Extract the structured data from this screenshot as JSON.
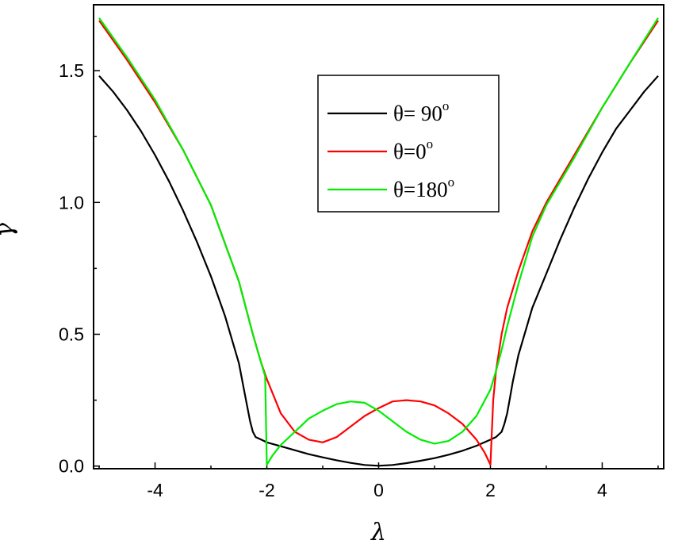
{
  "chart_data": {
    "type": "line",
    "xlabel": "λ",
    "ylabel": "γ",
    "xlim": [
      -5.1,
      5.1
    ],
    "ylim": [
      -0.01,
      1.75
    ],
    "x_ticks": [
      -4,
      -2,
      0,
      2,
      4
    ],
    "y_ticks": [
      0.0,
      0.5,
      1.0,
      1.5
    ],
    "x_tick_labels": [
      "-4",
      "-2",
      "0",
      "2",
      "4"
    ],
    "y_tick_labels": [
      "0.0",
      "0.5",
      "1.0",
      "1.5"
    ],
    "legend_position": "top-right",
    "series": [
      {
        "name": "θ= 90",
        "name_sup": "o",
        "color": "#000000",
        "points": [
          [
            -5,
            1.48
          ],
          [
            -4.75,
            1.42
          ],
          [
            -4.5,
            1.35
          ],
          [
            -4.25,
            1.27
          ],
          [
            -4,
            1.18
          ],
          [
            -3.75,
            1.08
          ],
          [
            -3.5,
            0.97
          ],
          [
            -3.25,
            0.85
          ],
          [
            -3,
            0.72
          ],
          [
            -2.75,
            0.57
          ],
          [
            -2.5,
            0.39
          ],
          [
            -2.4,
            0.28
          ],
          [
            -2.3,
            0.17
          ],
          [
            -2.25,
            0.13
          ],
          [
            -2.2,
            0.11
          ],
          [
            -2.1,
            0.1
          ],
          [
            -2,
            0.09
          ],
          [
            -1.75,
            0.075
          ],
          [
            -1.5,
            0.06
          ],
          [
            -1.25,
            0.045
          ],
          [
            -1,
            0.033
          ],
          [
            -0.75,
            0.022
          ],
          [
            -0.5,
            0.012
          ],
          [
            -0.25,
            0.004
          ],
          [
            0,
            0.001
          ],
          [
            0.25,
            0.004
          ],
          [
            0.5,
            0.011
          ],
          [
            0.75,
            0.02
          ],
          [
            1,
            0.03
          ],
          [
            1.25,
            0.043
          ],
          [
            1.5,
            0.058
          ],
          [
            1.75,
            0.077
          ],
          [
            2,
            0.1
          ],
          [
            2.1,
            0.11
          ],
          [
            2.2,
            0.13
          ],
          [
            2.25,
            0.16
          ],
          [
            2.3,
            0.2
          ],
          [
            2.35,
            0.26
          ],
          [
            2.4,
            0.32
          ],
          [
            2.5,
            0.42
          ],
          [
            2.75,
            0.6
          ],
          [
            3,
            0.73
          ],
          [
            3.25,
            0.86
          ],
          [
            3.5,
            0.98
          ],
          [
            3.75,
            1.09
          ],
          [
            4,
            1.19
          ],
          [
            4.25,
            1.28
          ],
          [
            4.5,
            1.35
          ],
          [
            4.75,
            1.42
          ],
          [
            5,
            1.48
          ]
        ]
      },
      {
        "name": "θ=0",
        "name_sup": "o",
        "color": "#ff0000",
        "points": [
          [
            -5,
            1.69
          ],
          [
            -4.5,
            1.54
          ],
          [
            -4,
            1.38
          ],
          [
            -3.5,
            1.2
          ],
          [
            -3,
            0.99
          ],
          [
            -2.5,
            0.7
          ],
          [
            -2.25,
            0.5
          ],
          [
            -2.1,
            0.39
          ],
          [
            -2,
            0.33
          ],
          [
            -1.75,
            0.2
          ],
          [
            -1.5,
            0.13
          ],
          [
            -1.25,
            0.1
          ],
          [
            -1,
            0.09
          ],
          [
            -0.75,
            0.11
          ],
          [
            -0.5,
            0.15
          ],
          [
            -0.25,
            0.19
          ],
          [
            0,
            0.22
          ],
          [
            0.25,
            0.245
          ],
          [
            0.5,
            0.25
          ],
          [
            0.75,
            0.245
          ],
          [
            1,
            0.23
          ],
          [
            1.25,
            0.2
          ],
          [
            1.5,
            0.16
          ],
          [
            1.75,
            0.1
          ],
          [
            1.9,
            0.05
          ],
          [
            2,
            0.005
          ],
          [
            2.05,
            0.25
          ],
          [
            2.1,
            0.36
          ],
          [
            2.2,
            0.5
          ],
          [
            2.3,
            0.6
          ],
          [
            2.5,
            0.74
          ],
          [
            2.75,
            0.89
          ],
          [
            3,
            1
          ],
          [
            3.5,
            1.18
          ],
          [
            4,
            1.36
          ],
          [
            4.5,
            1.53
          ],
          [
            5,
            1.69
          ]
        ]
      },
      {
        "name": "θ=180",
        "name_sup": "o",
        "color": "#00ee00",
        "points": [
          [
            -5,
            1.7
          ],
          [
            -4.5,
            1.55
          ],
          [
            -4,
            1.39
          ],
          [
            -3.5,
            1.2
          ],
          [
            -3,
            0.99
          ],
          [
            -2.5,
            0.7
          ],
          [
            -2.25,
            0.5
          ],
          [
            -2.1,
            0.39
          ],
          [
            -2.03,
            0.34
          ],
          [
            -2,
            0.005
          ],
          [
            -1.9,
            0.04
          ],
          [
            -1.75,
            0.08
          ],
          [
            -1.5,
            0.13
          ],
          [
            -1.25,
            0.18
          ],
          [
            -1,
            0.21
          ],
          [
            -0.75,
            0.235
          ],
          [
            -0.5,
            0.245
          ],
          [
            -0.25,
            0.24
          ],
          [
            0,
            0.21
          ],
          [
            0.25,
            0.17
          ],
          [
            0.5,
            0.13
          ],
          [
            0.75,
            0.1
          ],
          [
            1,
            0.085
          ],
          [
            1.25,
            0.095
          ],
          [
            1.5,
            0.13
          ],
          [
            1.75,
            0.19
          ],
          [
            2,
            0.29
          ],
          [
            2.1,
            0.36
          ],
          [
            2.2,
            0.44
          ],
          [
            2.3,
            0.53
          ],
          [
            2.5,
            0.69
          ],
          [
            2.75,
            0.87
          ],
          [
            3,
            0.99
          ],
          [
            3.5,
            1.17
          ],
          [
            4,
            1.36
          ],
          [
            4.5,
            1.53
          ],
          [
            5,
            1.7
          ]
        ]
      }
    ]
  }
}
